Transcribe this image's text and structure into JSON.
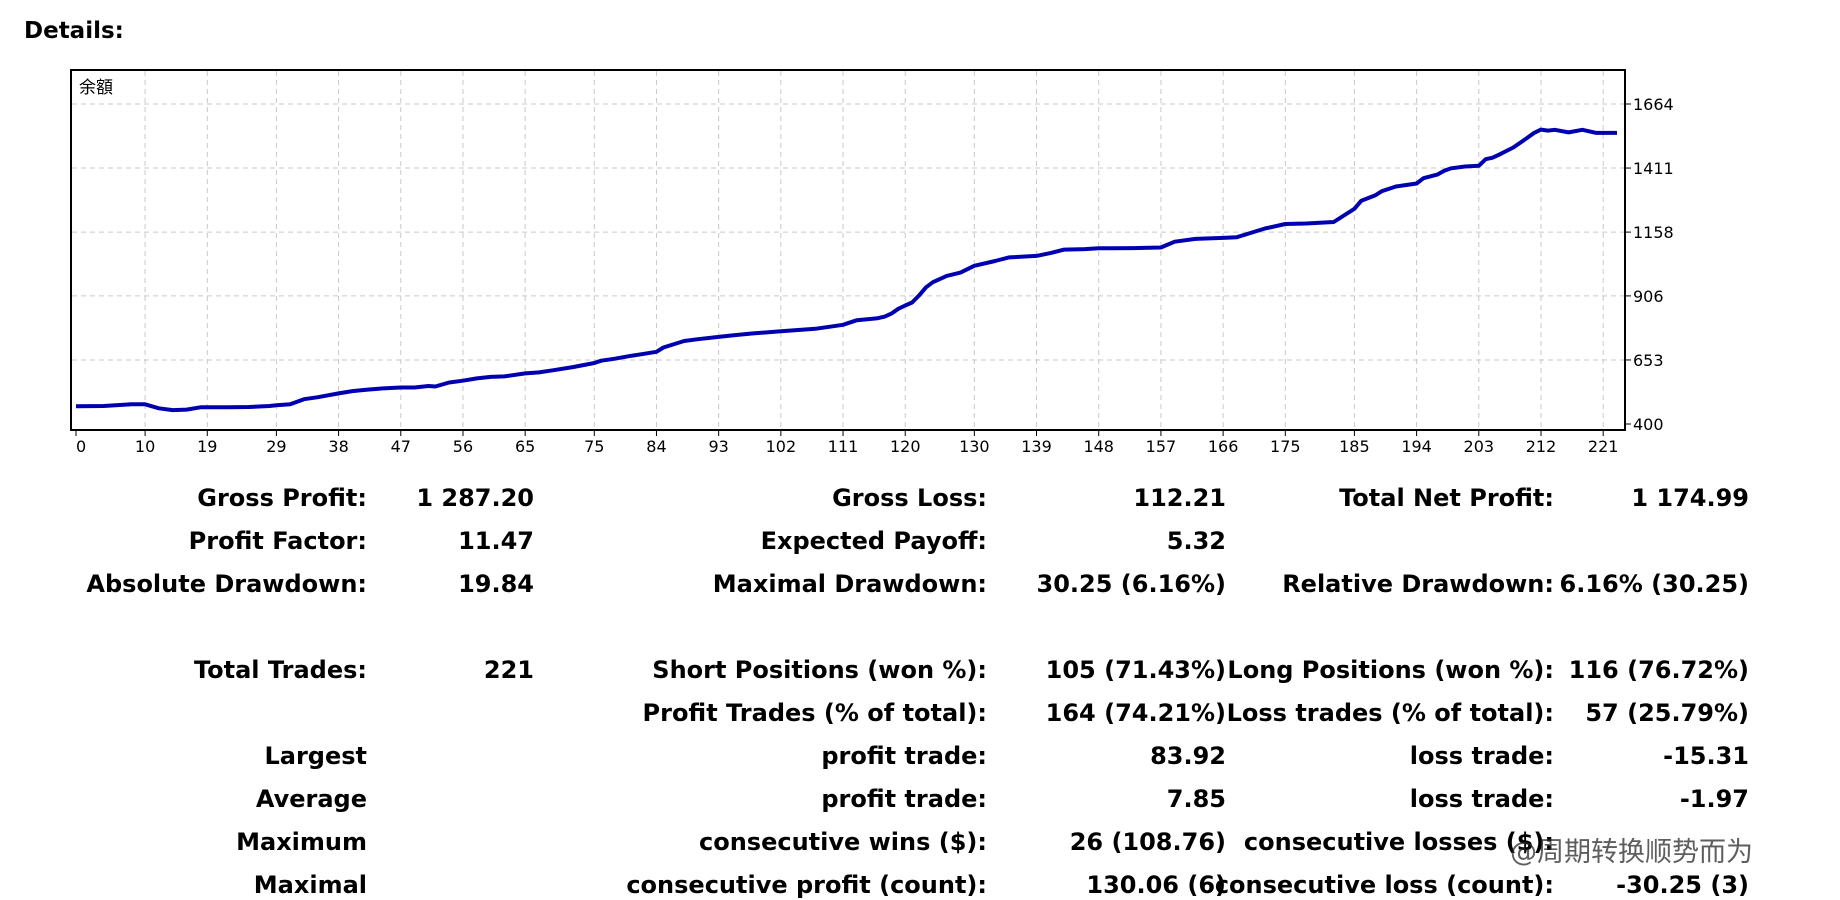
{
  "header": {
    "title": "Details:"
  },
  "chart_data": {
    "type": "line",
    "title": "余額",
    "xlabel": "",
    "ylabel": "",
    "x_ticks": [
      "0",
      "10",
      "19",
      "29",
      "38",
      "47",
      "56",
      "65",
      "75",
      "84",
      "93",
      "102",
      "111",
      "120",
      "130",
      "139",
      "148",
      "157",
      "166",
      "175",
      "185",
      "194",
      "203",
      "212",
      "221"
    ],
    "y_ticks": [
      "1664",
      "1411",
      "1158",
      "906",
      "653",
      "400"
    ],
    "xlim": [
      0,
      223
    ],
    "ylim": [
      400,
      1664
    ],
    "grid": true,
    "series": [
      {
        "color": "#0000b0",
        "x": [
          0,
          4,
          8,
          10,
          12,
          14,
          16,
          18,
          19,
          22,
          25,
          28,
          29,
          31,
          33,
          35,
          38,
          40,
          42,
          44,
          47,
          49,
          51,
          52,
          54,
          56,
          58,
          60,
          62,
          65,
          67,
          69,
          72,
          75,
          76,
          78,
          80,
          84,
          85,
          88,
          90,
          93,
          95,
          98,
          102,
          104,
          107,
          111,
          113,
          116,
          117,
          118,
          119,
          120,
          121,
          122,
          123,
          124,
          126,
          128,
          130,
          133,
          135,
          139,
          141,
          143,
          146,
          148,
          150,
          153,
          157,
          159,
          162,
          166,
          168,
          170,
          172,
          175,
          178,
          180,
          182,
          185,
          186,
          188,
          189,
          191,
          192,
          194,
          195,
          197,
          198,
          199,
          201,
          203,
          204,
          205,
          206,
          208,
          210,
          211,
          212,
          213,
          214,
          216,
          218,
          220,
          221,
          223
        ],
        "y": [
          470,
          471,
          478,
          478,
          462,
          455,
          457,
          466,
          466,
          466,
          467,
          471,
          474,
          478,
          498,
          506,
          521,
          530,
          535,
          540,
          544,
          544,
          550,
          548,
          564,
          571,
          580,
          586,
          588,
          600,
          604,
          612,
          625,
          641,
          650,
          658,
          668,
          685,
          702,
          728,
          735,
          744,
          750,
          758,
          766,
          770,
          776,
          792,
          810,
          818,
          824,
          836,
          855,
          868,
          880,
          908,
          940,
          960,
          985,
          998,
          1025,
          1044,
          1058,
          1064,
          1075,
          1089,
          1091,
          1094,
          1094,
          1095,
          1097,
          1120,
          1131,
          1135,
          1138,
          1155,
          1172,
          1190,
          1192,
          1195,
          1198,
          1250,
          1282,
          1303,
          1320,
          1338,
          1342,
          1350,
          1371,
          1385,
          1400,
          1410,
          1417,
          1420,
          1446,
          1452,
          1465,
          1492,
          1530,
          1550,
          1563,
          1559,
          1562,
          1552,
          1562,
          1550,
          1550,
          1550
        ]
      }
    ]
  },
  "stats": {
    "gross_profit": {
      "label": "Gross Profit:",
      "value": "1 287.20"
    },
    "gross_loss": {
      "label": "Gross Loss:",
      "value": "112.21"
    },
    "total_net_profit": {
      "label": "Total Net Profit:",
      "value": "1 174.99"
    },
    "profit_factor": {
      "label": "Profit Factor:",
      "value": "11.47"
    },
    "expected_payoff": {
      "label": "Expected Payoff:",
      "value": "5.32"
    },
    "absolute_drawdown": {
      "label": "Absolute Drawdown:",
      "value": "19.84"
    },
    "maximal_drawdown": {
      "label": "Maximal Drawdown:",
      "value": "30.25 (6.16%)"
    },
    "relative_drawdown": {
      "label": "Relative Drawdown:",
      "value": "6.16% (30.25)"
    },
    "total_trades": {
      "label": "Total Trades:",
      "value": "221"
    },
    "short_positions": {
      "label": "Short Positions (won %):",
      "value": "105 (71.43%)"
    },
    "long_positions": {
      "label": "Long Positions (won %):",
      "value": "116 (76.72%)"
    },
    "profit_trades": {
      "label": "Profit Trades (% of total):",
      "value": "164 (74.21%)"
    },
    "loss_trades": {
      "label": "Loss trades (% of total):",
      "value": "57 (25.79%)"
    },
    "largest": {
      "label": "Largest",
      "profit_label": "profit trade:",
      "profit_value": "83.92",
      "loss_label": "loss trade:",
      "loss_value": "-15.31"
    },
    "average": {
      "label": "Average",
      "profit_label": "profit trade:",
      "profit_value": "7.85",
      "loss_label": "loss trade:",
      "loss_value": "-1.97"
    },
    "maximum": {
      "label": "Maximum",
      "profit_label": "consecutive wins ($):",
      "profit_value": "26 (108.76)",
      "loss_label": "consecutive losses ($):",
      "loss_value": ""
    },
    "maximal": {
      "label": "Maximal",
      "profit_label": "consecutive profit (count):",
      "profit_value": "130.06 (6)",
      "loss_label": "consecutive loss (count):",
      "loss_value": "-30.25 (3)"
    }
  },
  "watermark": "@周期转换顺势而为"
}
